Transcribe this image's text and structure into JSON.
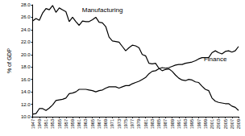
{
  "chart_data": {
    "type": "line",
    "y_label": "% of GDP",
    "x": [
      1947,
      1948,
      1949,
      1950,
      1951,
      1952,
      1953,
      1954,
      1955,
      1956,
      1957,
      1958,
      1959,
      1960,
      1961,
      1962,
      1963,
      1964,
      1965,
      1966,
      1967,
      1968,
      1969,
      1970,
      1971,
      1972,
      1973,
      1974,
      1975,
      1976,
      1977,
      1978,
      1979,
      1980,
      1981,
      1982,
      1983,
      1984,
      1985,
      1986,
      1987,
      1988,
      1989,
      1990,
      1991,
      1992,
      1993,
      1994,
      1995,
      1996,
      1997,
      1998,
      1999,
      2000,
      2001,
      2002,
      2003,
      2004,
      2005,
      2006,
      2007,
      2008,
      2009
    ],
    "series": [
      {
        "name": "Manufacturing",
        "color": "#000000",
        "values": [
          25.4,
          25.8,
          25.5,
          26.7,
          27.4,
          27.2,
          27.9,
          26.8,
          27.5,
          27.2,
          26.9,
          25.3,
          26.0,
          25.3,
          24.7,
          25.4,
          25.3,
          25.3,
          25.6,
          26.0,
          25.2,
          25.1,
          24.5,
          22.8,
          22.2,
          22.1,
          22.0,
          21.3,
          20.6,
          21.1,
          21.5,
          21.4,
          21.1,
          20.0,
          19.8,
          18.6,
          18.5,
          18.6,
          17.8,
          17.4,
          17.6,
          17.7,
          17.3,
          16.7,
          16.2,
          15.9,
          15.8,
          16.0,
          15.9,
          15.6,
          15.5,
          14.9,
          14.4,
          14.2,
          13.0,
          12.5,
          12.3,
          12.2,
          12.1,
          12.1,
          11.7,
          11.5,
          11.0
        ]
      },
      {
        "name": "Finance",
        "color": "#000000",
        "values": [
          10.4,
          10.5,
          11.3,
          11.3,
          11.0,
          11.4,
          11.9,
          12.6,
          12.7,
          12.8,
          13.0,
          13.7,
          13.8,
          14.0,
          14.4,
          14.4,
          14.4,
          14.3,
          14.2,
          14.0,
          14.2,
          14.3,
          14.6,
          14.8,
          14.8,
          14.8,
          14.6,
          14.8,
          15.0,
          15.0,
          15.3,
          15.5,
          15.7,
          16.0,
          16.3,
          16.9,
          17.3,
          17.4,
          17.7,
          17.9,
          17.8,
          17.9,
          18.1,
          18.3,
          18.4,
          18.4,
          18.6,
          18.7,
          18.8,
          19.0,
          19.3,
          19.5,
          19.5,
          19.5,
          20.3,
          20.6,
          20.3,
          20.1,
          20.5,
          20.6,
          20.4,
          20.6,
          21.3
        ]
      }
    ],
    "annotations": [
      {
        "text": "Manufacturing",
        "x": 1968,
        "y": 27.2
      },
      {
        "text": "Finance",
        "x": 2002,
        "y": 19.2
      }
    ],
    "xlim": [
      1947,
      2009
    ],
    "xticks": [
      1947,
      1949,
      1951,
      1953,
      1955,
      1957,
      1959,
      1961,
      1963,
      1965,
      1967,
      1969,
      1971,
      1973,
      1975,
      1977,
      1979,
      1981,
      1983,
      1985,
      1987,
      1989,
      1991,
      1993,
      1995,
      1997,
      1999,
      2001,
      2003,
      2005,
      2007,
      2009
    ],
    "ylim": [
      10,
      28
    ],
    "yticks": [
      {
        "value": 10,
        "label": "10.0"
      },
      {
        "value": 12,
        "label": "12.0"
      },
      {
        "value": 14,
        "label": "14.0"
      },
      {
        "value": 16,
        "label": "16.0"
      },
      {
        "value": 18,
        "label": "18.0"
      },
      {
        "value": 20,
        "label": "20.0"
      },
      {
        "value": 22,
        "label": "22.0"
      },
      {
        "value": 24,
        "label": "24.0"
      },
      {
        "value": 26,
        "label": "26.0"
      },
      {
        "value": 28,
        "label": "28.0"
      }
    ],
    "grid": false
  }
}
